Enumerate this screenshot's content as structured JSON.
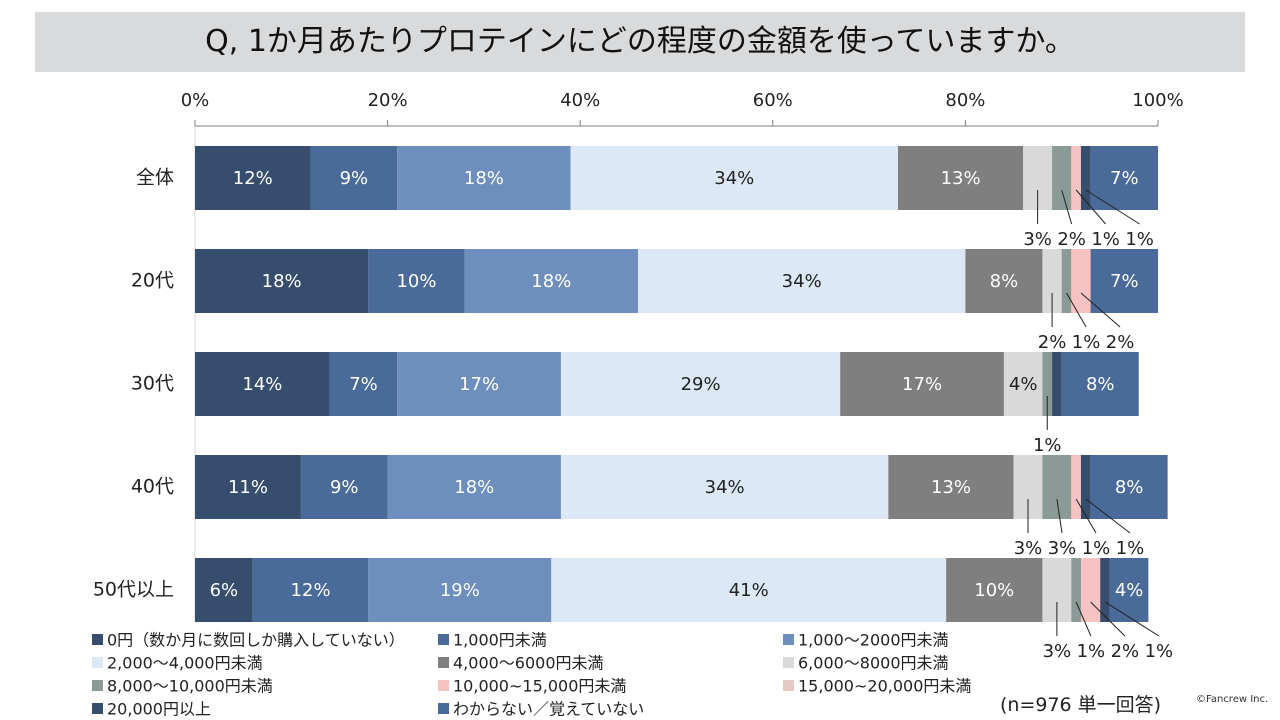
{
  "title": "Q, 1か月あたりプロテインにどの程度の金額を使っていますか。",
  "footnote": "(n=976 単一回答)",
  "copyright": "©Fancrew Inc.",
  "chart_data": {
    "type": "bar",
    "orientation": "horizontal",
    "stacked": "percent",
    "x_ticks": [
      "0%",
      "20%",
      "40%",
      "60%",
      "80%",
      "100%"
    ],
    "xlim": [
      0,
      100
    ],
    "legend_position": "bottom",
    "categories": [
      "全体",
      "20代",
      "30代",
      "40代",
      "50代以上"
    ],
    "series": [
      {
        "name": "0円（数か月に数回しか購入していない）",
        "color": "#374d6e",
        "values": [
          12,
          18,
          14,
          11,
          6
        ],
        "labels": [
          "12%",
          "18%",
          "14%",
          "11%",
          "6%"
        ]
      },
      {
        "name": "1,000円未満",
        "color": "#4a6b9a",
        "values": [
          9,
          10,
          7,
          9,
          12
        ],
        "labels": [
          "9%",
          "10%",
          "7%",
          "9%",
          "12%"
        ]
      },
      {
        "name": "1,000～2000円未満",
        "color": "#6e8fbd",
        "values": [
          18,
          18,
          17,
          18,
          19
        ],
        "labels": [
          "18%",
          "18%",
          "17%",
          "18%",
          "19%"
        ]
      },
      {
        "name": "2,000～4,000円未満",
        "color": "#dce8f5",
        "values": [
          34,
          34,
          29,
          34,
          41
        ],
        "labels": [
          "34%",
          "34%",
          "29%",
          "34%",
          "41%"
        ]
      },
      {
        "name": "4,000～6000円未満",
        "color": "#7f7f7f",
        "values": [
          13,
          8,
          17,
          13,
          10
        ],
        "labels": [
          "13%",
          "8%",
          "17%",
          "13%",
          "10%"
        ]
      },
      {
        "name": "6,000～8000円未満",
        "color": "#d9d9d9",
        "values": [
          3,
          2,
          4,
          3,
          3
        ],
        "labels": [
          "3%",
          "2%",
          "4%",
          "3%",
          "3%"
        ]
      },
      {
        "name": "8,000～10,000円未満",
        "color": "#8a9a96",
        "values": [
          2,
          1,
          1,
          3,
          1
        ],
        "labels": [
          "2%",
          "1%",
          "1%",
          "3%",
          "1%"
        ]
      },
      {
        "name": "10,000~15,000円未満",
        "color": "#f7c2c2",
        "values": [
          1,
          2,
          0,
          1,
          2
        ],
        "labels": [
          "1%",
          "2%",
          "",
          "1%",
          "2%"
        ]
      },
      {
        "name": "15,000~20,000円未満",
        "color": "#e3cbc4",
        "values": [
          0,
          0,
          0,
          0,
          0
        ],
        "labels": [
          "",
          "",
          "",
          "",
          ""
        ]
      },
      {
        "name": "20,000円以上",
        "color": "#374d6e",
        "values": [
          1,
          0,
          1,
          1,
          1
        ],
        "labels": [
          "1%",
          "",
          "",
          "1%",
          "1%"
        ]
      },
      {
        "name": "わからない／覚えていない",
        "color": "#4a6b9a",
        "values": [
          7,
          7,
          8,
          8,
          4
        ],
        "labels": [
          "7%",
          "7%",
          "8%",
          "8%",
          "4%"
        ]
      }
    ]
  }
}
